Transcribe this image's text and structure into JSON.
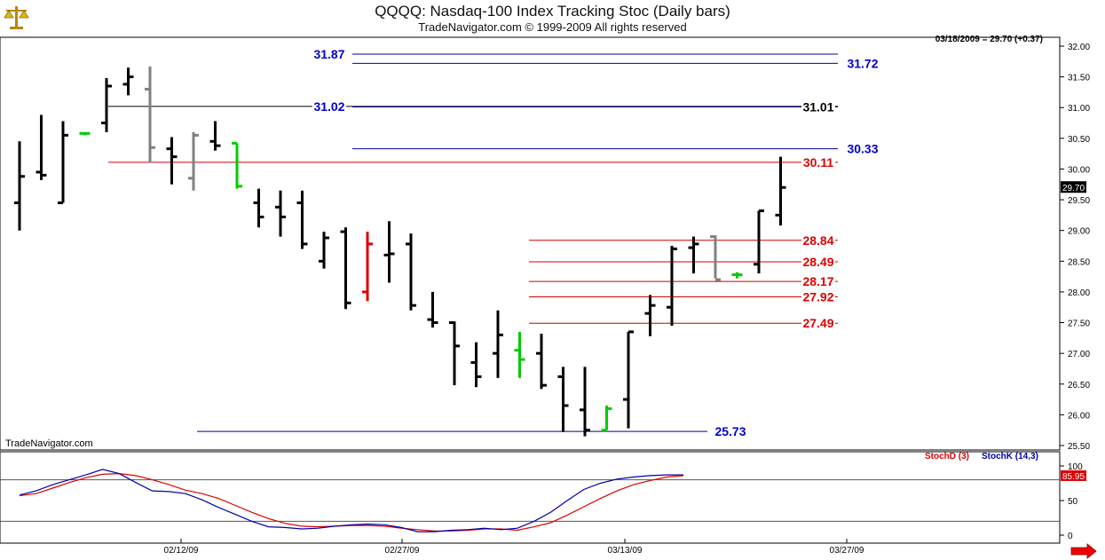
{
  "header": {
    "title": "QQQQ:  Nasdaq-100 Index Tracking Stoc  (Daily bars)",
    "subtitle": "TradeNavigator.com © 1999-2009 All rights reserved",
    "quote": "03/18/2009 = 29.70 (+0.37)",
    "watermark": "TradeNavigator.com"
  },
  "colors": {
    "up": "#000000",
    "flat": "#808080",
    "green": "#00cc00",
    "red": "#dd0000",
    "blue_line": "#000099",
    "red_line": "#cc0000",
    "stochD": "#dd0000",
    "stochK": "#0000aa"
  },
  "icons": {
    "logo": "scales-icon",
    "scroll": "arrow-right-icon"
  },
  "chart_data": [
    {
      "type": "ohlc",
      "ylim": [
        25.5,
        32.2
      ],
      "yticks": [
        "25.50",
        "26.00",
        "26.50",
        "27.00",
        "27.50",
        "28.00",
        "28.50",
        "29.00",
        "29.50",
        "30.00",
        "30.50",
        "31.00",
        "31.50",
        "32.00"
      ],
      "xticks": [
        "02/12/09",
        "02/27/09",
        "03/13/09",
        "03/27/09"
      ],
      "last_price_label": "29.70",
      "bars": [
        {
          "o": 29.45,
          "h": 30.45,
          "l": 29.0,
          "c": 29.88,
          "color": "#000000"
        },
        {
          "o": 29.95,
          "h": 30.88,
          "l": 29.82,
          "c": 29.9,
          "color": "#000000"
        },
        {
          "o": 29.45,
          "h": 30.78,
          "l": 29.45,
          "c": 30.55,
          "color": "#000000"
        },
        {
          "o": 30.58,
          "h": 30.58,
          "l": 30.55,
          "c": 30.58,
          "color": "#00cc00"
        },
        {
          "o": 30.75,
          "h": 31.48,
          "l": 30.6,
          "c": 31.35,
          "color": "#000000"
        },
        {
          "o": 31.38,
          "h": 31.65,
          "l": 31.2,
          "c": 31.5,
          "color": "#000000"
        },
        {
          "o": 31.3,
          "h": 31.67,
          "l": 30.1,
          "c": 30.35,
          "color": "#808080"
        },
        {
          "o": 30.33,
          "h": 30.52,
          "l": 29.75,
          "c": 30.2,
          "color": "#000000"
        },
        {
          "o": 29.85,
          "h": 30.6,
          "l": 29.65,
          "c": 30.55,
          "color": "#808080"
        },
        {
          "o": 30.45,
          "h": 30.78,
          "l": 30.3,
          "c": 30.38,
          "color": "#000000"
        },
        {
          "o": 30.42,
          "h": 30.42,
          "l": 29.68,
          "c": 29.72,
          "color": "#00cc00"
        },
        {
          "o": 29.45,
          "h": 29.68,
          "l": 29.05,
          "c": 29.22,
          "color": "#000000"
        },
        {
          "o": 29.38,
          "h": 29.65,
          "l": 28.9,
          "c": 29.22,
          "color": "#000000"
        },
        {
          "o": 29.45,
          "h": 29.65,
          "l": 28.7,
          "c": 28.78,
          "color": "#000000"
        },
        {
          "o": 28.5,
          "h": 28.98,
          "l": 28.38,
          "c": 28.88,
          "color": "#000000"
        },
        {
          "o": 28.98,
          "h": 29.05,
          "l": 27.72,
          "c": 27.82,
          "color": "#000000"
        },
        {
          "o": 28.0,
          "h": 28.98,
          "l": 27.85,
          "c": 28.78,
          "color": "#dd0000"
        },
        {
          "o": 28.6,
          "h": 29.15,
          "l": 28.15,
          "c": 28.62,
          "color": "#000000"
        },
        {
          "o": 28.78,
          "h": 28.95,
          "l": 27.7,
          "c": 27.78,
          "color": "#000000"
        },
        {
          "o": 27.55,
          "h": 28.0,
          "l": 27.42,
          "c": 27.5,
          "color": "#000000"
        },
        {
          "o": 27.5,
          "h": 27.52,
          "l": 26.48,
          "c": 27.12,
          "color": "#000000"
        },
        {
          "o": 26.85,
          "h": 27.18,
          "l": 26.45,
          "c": 26.62,
          "color": "#000000"
        },
        {
          "o": 27.0,
          "h": 27.7,
          "l": 26.6,
          "c": 27.3,
          "color": "#000000"
        },
        {
          "o": 27.05,
          "h": 27.35,
          "l": 26.6,
          "c": 26.9,
          "color": "#00cc00"
        },
        {
          "o": 27.0,
          "h": 27.32,
          "l": 26.42,
          "c": 26.48,
          "color": "#000000"
        },
        {
          "o": 26.62,
          "h": 26.78,
          "l": 25.72,
          "c": 26.15,
          "color": "#000000"
        },
        {
          "o": 26.08,
          "h": 26.78,
          "l": 25.65,
          "c": 25.75,
          "color": "#000000"
        },
        {
          "o": 25.75,
          "h": 26.15,
          "l": 25.75,
          "c": 26.1,
          "color": "#00cc00"
        },
        {
          "o": 26.25,
          "h": 27.35,
          "l": 25.78,
          "c": 27.35,
          "color": "#000000"
        },
        {
          "o": 27.65,
          "h": 27.95,
          "l": 27.28,
          "c": 27.78,
          "color": "#000000"
        },
        {
          "o": 27.75,
          "h": 28.75,
          "l": 27.45,
          "c": 28.7,
          "color": "#000000"
        },
        {
          "o": 28.72,
          "h": 28.9,
          "l": 28.3,
          "c": 28.78,
          "color": "#000000"
        },
        {
          "o": 28.9,
          "h": 28.92,
          "l": 28.22,
          "c": 28.2,
          "color": "#808080"
        },
        {
          "o": 28.28,
          "h": 28.32,
          "l": 28.22,
          "c": 28.28,
          "color": "#00cc00"
        },
        {
          "o": 28.45,
          "h": 29.32,
          "l": 28.3,
          "c": 29.32,
          "color": "#000000"
        },
        {
          "o": 29.25,
          "h": 30.2,
          "l": 29.08,
          "c": 29.7,
          "color": "#000000"
        }
      ],
      "levels": [
        {
          "value": 31.87,
          "label": "31.87",
          "label_color": "#0000cc"
        },
        {
          "value": 31.72,
          "label": "31.72",
          "label_color": "#0000cc"
        },
        {
          "value": 31.02,
          "label": "31.02",
          "label_color": "#0000cc"
        },
        {
          "value": 31.01,
          "label": "31.01",
          "label_color": "#000000"
        },
        {
          "value": 30.33,
          "label": "30.33",
          "label_color": "#0000cc"
        },
        {
          "value": 30.11,
          "label": "30.11",
          "label_color": "#dd0000"
        },
        {
          "value": 28.84,
          "label": "28.84",
          "label_color": "#dd0000"
        },
        {
          "value": 28.49,
          "label": "28.49",
          "label_color": "#dd0000"
        },
        {
          "value": 28.17,
          "label": "28.17",
          "label_color": "#dd0000"
        },
        {
          "value": 27.92,
          "label": "27.92",
          "label_color": "#dd0000"
        },
        {
          "value": 27.49,
          "label": "27.49",
          "label_color": "#dd0000"
        },
        {
          "value": 25.73,
          "label": "25.73",
          "label_color": "#0000cc"
        }
      ]
    },
    {
      "type": "line",
      "ylim": [
        0,
        110
      ],
      "yticks": [
        "0",
        "50",
        "100"
      ],
      "reference_lines": [
        20,
        80
      ],
      "last_value_label": "85.95",
      "series": [
        {
          "name": "StochD (3)",
          "color": "#dd0000",
          "values": [
            57,
            60,
            68,
            76,
            83,
            88,
            89,
            86,
            80,
            73,
            65,
            60,
            53,
            43,
            33,
            24,
            17,
            13,
            12,
            13,
            14,
            14,
            13,
            10,
            8,
            6,
            6,
            7,
            9,
            9,
            7,
            12,
            18,
            29,
            41,
            53,
            64,
            73,
            79,
            84,
            86
          ]
        },
        {
          "name": "StochK (14,3)",
          "color": "#0000aa",
          "values": [
            58,
            64,
            73,
            80,
            87,
            95,
            89,
            76,
            64,
            63,
            60,
            51,
            40,
            30,
            20,
            12,
            11,
            9,
            10,
            13,
            15,
            16,
            15,
            11,
            5,
            5,
            7,
            8,
            10,
            8,
            10,
            20,
            33,
            50,
            66,
            75,
            81,
            84,
            86,
            87,
            87
          ]
        }
      ]
    }
  ]
}
